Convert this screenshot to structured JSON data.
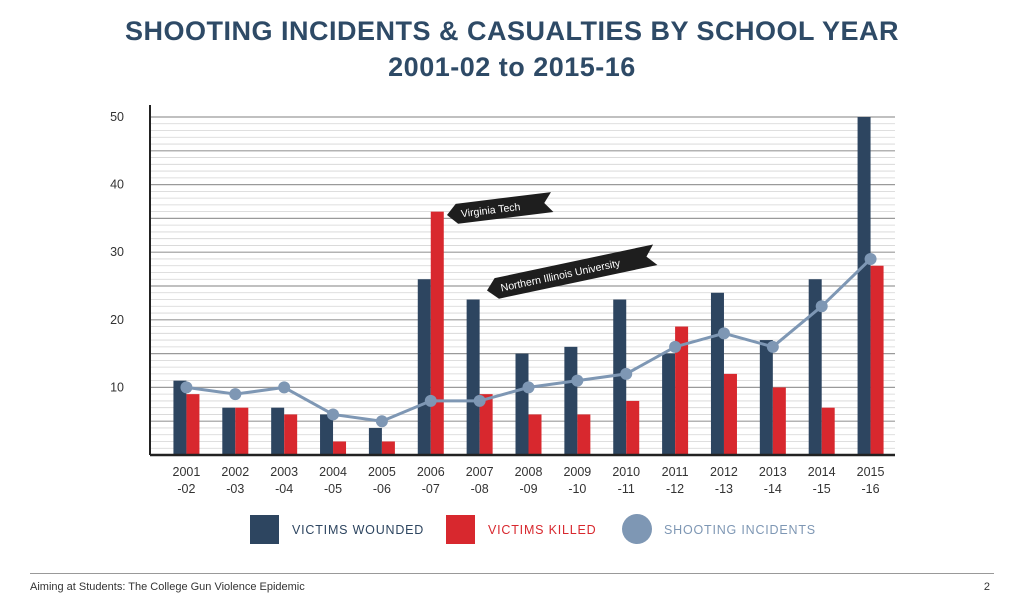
{
  "chart_data": {
    "type": "bar",
    "title": "SHOOTING INCIDENTS & CASUALTIES BY SCHOOL YEAR",
    "subtitle": "2001-02 to 2015-16",
    "categories": [
      [
        "2001",
        "-02"
      ],
      [
        "2002",
        "-03"
      ],
      [
        "2003",
        "-04"
      ],
      [
        "2004",
        "-05"
      ],
      [
        "2005",
        "-06"
      ],
      [
        "2006",
        "-07"
      ],
      [
        "2007",
        "-08"
      ],
      [
        "2008",
        "-09"
      ],
      [
        "2009",
        "-10"
      ],
      [
        "2010",
        "-11"
      ],
      [
        "2011",
        "-12"
      ],
      [
        "2012",
        "-13"
      ],
      [
        "2013",
        "-14"
      ],
      [
        "2014",
        "-15"
      ],
      [
        "2015",
        "-16"
      ]
    ],
    "series": [
      {
        "name": "VICTIMS WOUNDED",
        "type": "bar",
        "color": "#2d4560",
        "values": [
          11,
          7,
          7,
          6,
          4,
          26,
          23,
          15,
          16,
          23,
          15,
          24,
          17,
          26,
          50
        ]
      },
      {
        "name": "VICTIMS KILLED",
        "type": "bar",
        "color": "#d8282e",
        "values": [
          9,
          7,
          6,
          2,
          2,
          36,
          9,
          6,
          6,
          8,
          19,
          12,
          10,
          7,
          28
        ]
      },
      {
        "name": "SHOOTING INCIDENTS",
        "type": "line",
        "color": "#7e97b4",
        "values": [
          10,
          9,
          10,
          6,
          5,
          8,
          8,
          10,
          11,
          12,
          16,
          18,
          16,
          22,
          29
        ]
      }
    ],
    "ylim": [
      0,
      50
    ],
    "yticks": [
      10,
      20,
      30,
      40,
      50
    ],
    "grid": true,
    "legend": "bottom",
    "annotations": [
      {
        "text": "Virginia Tech",
        "category_index": 5
      },
      {
        "text": "Northern Illinois University",
        "category_index": 6
      }
    ]
  },
  "footer": {
    "left": "Aiming at Students: The College Gun Violence Epidemic",
    "page": "2"
  }
}
